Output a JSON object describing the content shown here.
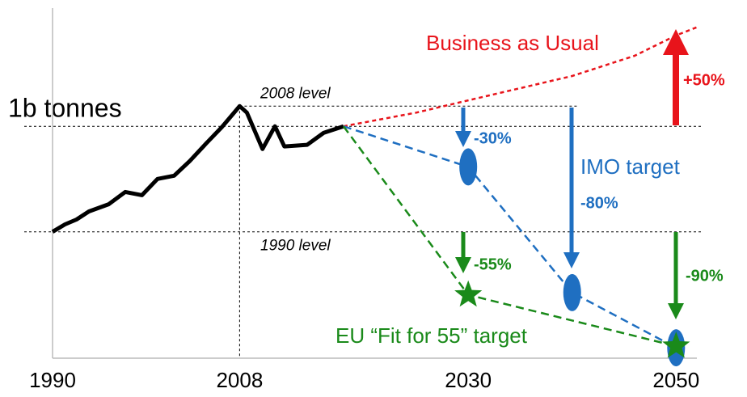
{
  "chart_data": {
    "type": "line",
    "xlim": [
      1990,
      2052
    ],
    "ylim": [
      0,
      1.44
    ],
    "xticks": [
      1990,
      2008,
      2030,
      2050
    ],
    "yticks": [
      {
        "value": 1,
        "label": "1b tonnes"
      }
    ],
    "x_reference": 2008,
    "reference_lines": [
      {
        "value": 1.087,
        "label": "2008 level"
      },
      {
        "value": 0.545,
        "label": "1990 level"
      }
    ],
    "series": [
      {
        "color": "#000000",
        "style": "solid",
        "x": [
          1990,
          1991.2,
          1992.3,
          1993.5,
          1995.4,
          1997.0,
          1998.6,
          2000.1,
          2001.7,
          2003.2,
          2004.8,
          2006.3,
          2008,
          2008.7,
          2010.2,
          2011.4,
          2012.3,
          2014.5,
          2016.1,
          2018
        ],
        "values": [
          0.545,
          0.577,
          0.598,
          0.633,
          0.664,
          0.717,
          0.703,
          0.773,
          0.787,
          0.85,
          0.927,
          0.997,
          1.087,
          1.059,
          0.902,
          1.0,
          0.913,
          0.92,
          0.972,
          1.0
        ]
      },
      {
        "color": "#e8141b",
        "style": "dashed",
        "x": [
          2018,
          2025,
          2030,
          2040,
          2046,
          2050,
          2052
        ],
        "values": [
          1.0,
          1.059,
          1.112,
          1.217,
          1.304,
          1.392,
          1.427
        ]
      },
      {
        "color": "#1f6fc1",
        "style": "dashed",
        "marker": "ellipse",
        "x": [
          2018,
          2030,
          2040,
          2050
        ],
        "values": [
          1.0,
          0.825,
          0.283,
          0.045
        ]
      },
      {
        "color": "#1a8a1a",
        "style": "dashed",
        "marker": "star",
        "x": [
          2018,
          2030,
          2050
        ],
        "values": [
          1.0,
          0.273,
          0.052
        ]
      }
    ],
    "annotations": [
      "Business as Usual",
      "+50%",
      "-30%",
      "IMO target",
      "-80%",
      "-55%",
      "-90%",
      "EU “Fit for 55” target"
    ]
  }
}
